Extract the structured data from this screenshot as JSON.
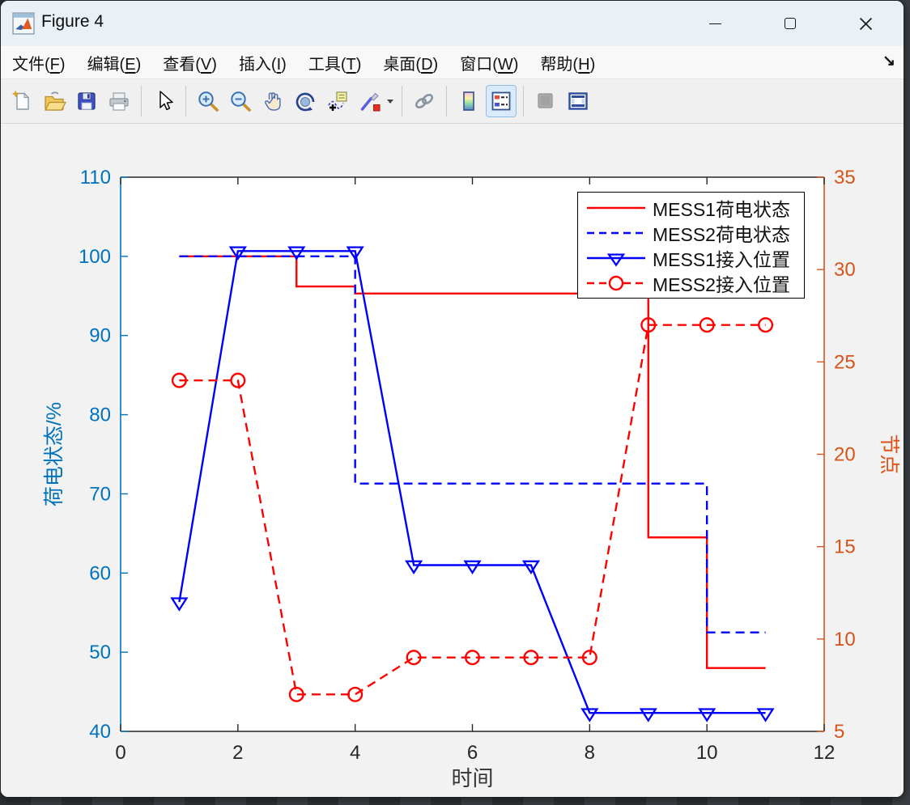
{
  "window": {
    "title": "Figure 4",
    "controls": {
      "minimize": "─",
      "maximize": "□",
      "close": "✕"
    }
  },
  "menu": {
    "items": [
      {
        "key": "file",
        "label": "文件",
        "mnemonic": "F"
      },
      {
        "key": "edit",
        "label": "编辑",
        "mnemonic": "E"
      },
      {
        "key": "view",
        "label": "查看",
        "mnemonic": "V"
      },
      {
        "key": "insert",
        "label": "插入",
        "mnemonic": "I"
      },
      {
        "key": "tools",
        "label": "工具",
        "mnemonic": "T"
      },
      {
        "key": "desktop",
        "label": "桌面",
        "mnemonic": "D"
      },
      {
        "key": "window",
        "label": "窗口",
        "mnemonic": "W"
      },
      {
        "key": "help",
        "label": "帮助",
        "mnemonic": "H"
      }
    ],
    "dock_arrow": "↘"
  },
  "toolbar": {
    "buttons": [
      "new-figure",
      "open-file",
      "save-figure",
      "print-figure",
      "edit-plot",
      "zoom-in",
      "zoom-out",
      "pan",
      "rotate-3d",
      "data-tips",
      "brush-data",
      "link-plots",
      "insert-colorbar",
      "insert-legend",
      "hide-plot-tools",
      "show-plot-tools-dock"
    ],
    "active_button": "insert-legend"
  },
  "chart_data": {
    "type": "line",
    "title": "",
    "xlabel": "时间",
    "xlim": [
      0,
      12
    ],
    "x_ticks": [
      0,
      2,
      4,
      6,
      8,
      10,
      12
    ],
    "x": [
      1,
      2,
      3,
      4,
      5,
      6,
      7,
      8,
      9,
      10,
      11
    ],
    "grid": false,
    "legend_position": "top-right",
    "left_axis": {
      "label": "荷电状态/%",
      "lim": [
        40,
        110
      ],
      "ticks": [
        40,
        50,
        60,
        70,
        80,
        90,
        100,
        110
      ],
      "color": "#0072BD"
    },
    "right_axis": {
      "label": "节点",
      "lim": [
        5,
        35
      ],
      "ticks": [
        5,
        10,
        15,
        20,
        25,
        30,
        35
      ],
      "color": "#D95319"
    },
    "x_axis_color": "#262626",
    "series": [
      {
        "name": "MESS1荷电状态",
        "axis": "left",
        "plot": "stairs",
        "line": "solid",
        "marker": "none",
        "color": "#FF0000",
        "values": [
          100,
          100,
          96.2,
          95.3,
          95.3,
          95.3,
          95.3,
          95.3,
          64.5,
          48,
          48
        ]
      },
      {
        "name": "MESS2荷电状态",
        "axis": "left",
        "plot": "stairs",
        "line": "dashed",
        "marker": "none",
        "color": "#0000FF",
        "values": [
          100,
          100,
          100,
          71.3,
          71.3,
          71.3,
          71.3,
          71.3,
          71.3,
          52.5,
          52.5
        ]
      },
      {
        "name": "MESS1接入位置",
        "axis": "right",
        "plot": "line",
        "line": "solid",
        "marker": "triangle-down",
        "color": "#0000FF",
        "values": [
          12,
          31,
          31,
          31,
          14,
          14,
          14,
          6,
          6,
          6,
          6
        ]
      },
      {
        "name": "MESS2接入位置",
        "axis": "right",
        "plot": "line",
        "line": "dashed",
        "marker": "circle",
        "color": "#FF0000",
        "values": [
          24,
          24,
          7,
          7,
          9,
          9,
          9,
          9,
          27,
          27,
          27
        ]
      }
    ]
  }
}
